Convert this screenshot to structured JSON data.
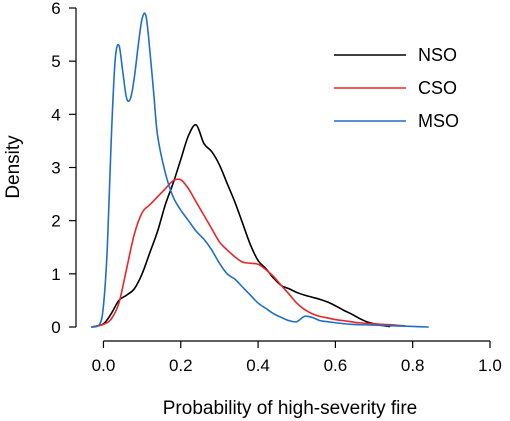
{
  "chart_data": {
    "type": "line",
    "title": "",
    "xlabel": "Probability of high-severity fire",
    "ylabel": "Density",
    "xlim": [
      -0.04,
      1.0
    ],
    "ylim": [
      0,
      6
    ],
    "xticks": [
      0.0,
      0.2,
      0.4,
      0.6,
      0.8,
      1.0
    ],
    "xtick_labels": [
      "0.0",
      "0.2",
      "0.4",
      "0.6",
      "0.8",
      "1.0"
    ],
    "yticks": [
      0,
      1,
      2,
      3,
      4,
      5,
      6
    ],
    "ytick_labels": [
      "0",
      "1",
      "2",
      "3",
      "4",
      "5",
      "6"
    ],
    "grid": false,
    "legend_position": "top-right",
    "series": [
      {
        "name": "NSO",
        "color": "#000000",
        "x": [
          -0.03,
          0.0,
          0.02,
          0.04,
          0.06,
          0.08,
          0.1,
          0.12,
          0.14,
          0.16,
          0.18,
          0.2,
          0.22,
          0.24,
          0.26,
          0.28,
          0.3,
          0.32,
          0.34,
          0.36,
          0.38,
          0.4,
          0.42,
          0.44,
          0.46,
          0.48,
          0.5,
          0.52,
          0.54,
          0.56,
          0.58,
          0.6,
          0.62,
          0.64,
          0.66,
          0.68,
          0.7,
          0.72,
          0.74
        ],
        "y": [
          0.0,
          0.06,
          0.25,
          0.5,
          0.6,
          0.72,
          1.0,
          1.4,
          1.8,
          2.3,
          2.7,
          3.15,
          3.6,
          3.8,
          3.45,
          3.3,
          3.05,
          2.7,
          2.35,
          1.95,
          1.55,
          1.25,
          1.1,
          0.92,
          0.78,
          0.72,
          0.65,
          0.6,
          0.56,
          0.52,
          0.47,
          0.4,
          0.32,
          0.25,
          0.17,
          0.1,
          0.06,
          0.03,
          0.01
        ]
      },
      {
        "name": "CSO",
        "color": "#e8262a",
        "x": [
          -0.03,
          0.0,
          0.02,
          0.04,
          0.06,
          0.08,
          0.1,
          0.12,
          0.14,
          0.16,
          0.18,
          0.2,
          0.22,
          0.24,
          0.26,
          0.28,
          0.3,
          0.32,
          0.34,
          0.36,
          0.38,
          0.4,
          0.42,
          0.44,
          0.46,
          0.48,
          0.5,
          0.52,
          0.54,
          0.56,
          0.58,
          0.6,
          0.62,
          0.64,
          0.66,
          0.68,
          0.7,
          0.72,
          0.75,
          0.78
        ],
        "y": [
          0.0,
          0.05,
          0.15,
          0.45,
          1.1,
          1.75,
          2.15,
          2.3,
          2.45,
          2.6,
          2.75,
          2.77,
          2.6,
          2.35,
          2.1,
          1.85,
          1.6,
          1.45,
          1.32,
          1.22,
          1.2,
          1.18,
          1.08,
          0.95,
          0.78,
          0.62,
          0.45,
          0.33,
          0.25,
          0.2,
          0.17,
          0.14,
          0.12,
          0.1,
          0.08,
          0.07,
          0.06,
          0.05,
          0.04,
          0.02
        ]
      },
      {
        "name": "MSO",
        "color": "#1f6ec9",
        "x": [
          -0.03,
          -0.01,
          0.0,
          0.01,
          0.02,
          0.03,
          0.04,
          0.05,
          0.06,
          0.07,
          0.08,
          0.09,
          0.1,
          0.11,
          0.12,
          0.13,
          0.14,
          0.16,
          0.18,
          0.2,
          0.22,
          0.24,
          0.26,
          0.28,
          0.3,
          0.32,
          0.34,
          0.36,
          0.38,
          0.4,
          0.42,
          0.44,
          0.46,
          0.48,
          0.5,
          0.52,
          0.54,
          0.56,
          0.58,
          0.6,
          0.64,
          0.68,
          0.72,
          0.76,
          0.8,
          0.84
        ],
        "y": [
          0.0,
          0.05,
          0.4,
          1.5,
          3.5,
          5.0,
          5.3,
          4.8,
          4.3,
          4.3,
          4.7,
          5.3,
          5.8,
          5.85,
          5.2,
          4.4,
          3.6,
          2.9,
          2.45,
          2.2,
          2.0,
          1.8,
          1.65,
          1.45,
          1.2,
          1.0,
          0.9,
          0.75,
          0.6,
          0.45,
          0.35,
          0.25,
          0.18,
          0.12,
          0.1,
          0.2,
          0.18,
          0.12,
          0.1,
          0.08,
          0.05,
          0.04,
          0.03,
          0.02,
          0.01,
          0.0
        ]
      }
    ]
  }
}
